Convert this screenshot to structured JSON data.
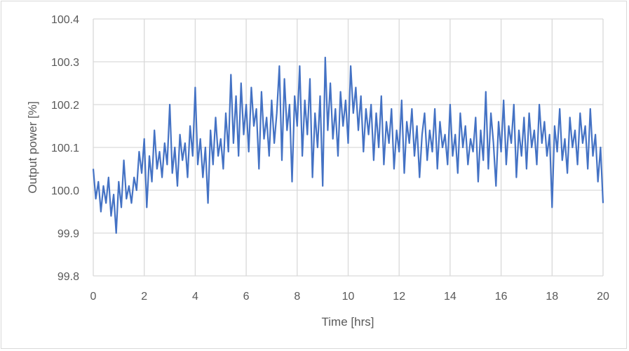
{
  "chart_data": {
    "type": "line",
    "title": "",
    "xlabel": "Time [hrs]",
    "ylabel": "Output power [%]",
    "xlim": [
      0,
      20
    ],
    "ylim": [
      99.8,
      100.4
    ],
    "x_ticks": [
      "0",
      "2",
      "4",
      "6",
      "8",
      "10",
      "12",
      "14",
      "16",
      "18",
      "20"
    ],
    "y_ticks": [
      "99.8",
      "99.9",
      "100.0",
      "100.1",
      "100.2",
      "100.3",
      "100.4"
    ],
    "grid": true,
    "legend": "none",
    "x_start": 0,
    "x_step": 0.1,
    "series": [
      {
        "color": "#4472C4",
        "values": [
          100.05,
          99.98,
          100.02,
          99.95,
          100.01,
          99.97,
          100.03,
          99.94,
          99.99,
          99.9,
          100.02,
          99.96,
          100.07,
          99.98,
          100.01,
          99.97,
          100.03,
          100.0,
          100.09,
          100.04,
          100.12,
          99.96,
          100.08,
          100.02,
          100.14,
          100.05,
          100.09,
          100.03,
          100.11,
          100.06,
          100.2,
          100.04,
          100.1,
          100.01,
          100.13,
          100.07,
          100.11,
          100.03,
          100.15,
          100.08,
          100.24,
          100.06,
          100.12,
          100.03,
          100.1,
          99.97,
          100.14,
          100.06,
          100.17,
          100.08,
          100.12,
          100.05,
          100.18,
          100.09,
          100.27,
          100.11,
          100.22,
          100.08,
          100.25,
          100.13,
          100.2,
          100.09,
          100.24,
          100.15,
          100.19,
          100.05,
          100.23,
          100.12,
          100.17,
          100.08,
          100.21,
          100.11,
          100.18,
          100.29,
          100.07,
          100.26,
          100.14,
          100.2,
          100.02,
          100.22,
          100.15,
          100.29,
          100.08,
          100.21,
          100.13,
          100.26,
          100.03,
          100.18,
          100.1,
          100.22,
          100.01,
          100.31,
          100.14,
          100.25,
          100.12,
          100.19,
          100.08,
          100.23,
          100.15,
          100.21,
          100.11,
          100.29,
          100.18,
          100.24,
          100.14,
          100.22,
          100.09,
          100.19,
          100.13,
          100.2,
          100.07,
          100.18,
          100.1,
          100.22,
          100.06,
          100.16,
          100.11,
          100.19,
          100.05,
          100.14,
          100.09,
          100.21,
          100.04,
          100.16,
          100.11,
          100.19,
          100.08,
          100.15,
          100.03,
          100.13,
          100.18,
          100.07,
          100.14,
          100.09,
          100.19,
          100.05,
          100.16,
          100.1,
          100.13,
          100.06,
          100.2,
          100.08,
          100.13,
          100.04,
          100.18,
          100.1,
          100.15,
          100.06,
          100.12,
          100.09,
          100.17,
          100.02,
          100.14,
          100.07,
          100.23,
          100.05,
          100.18,
          100.11,
          100.01,
          100.16,
          100.09,
          100.21,
          100.06,
          100.15,
          100.11,
          100.2,
          100.03,
          100.14,
          100.08,
          100.17,
          100.05,
          100.18,
          100.1,
          100.14,
          100.06,
          100.2,
          100.11,
          100.16,
          100.08,
          100.13,
          99.96,
          100.15,
          100.09,
          100.19,
          100.07,
          100.12,
          100.04,
          100.17,
          100.1,
          100.14,
          100.06,
          100.18,
          100.11,
          100.15,
          100.05,
          100.19,
          100.08,
          100.13,
          100.02,
          100.1,
          99.97
        ]
      }
    ]
  }
}
